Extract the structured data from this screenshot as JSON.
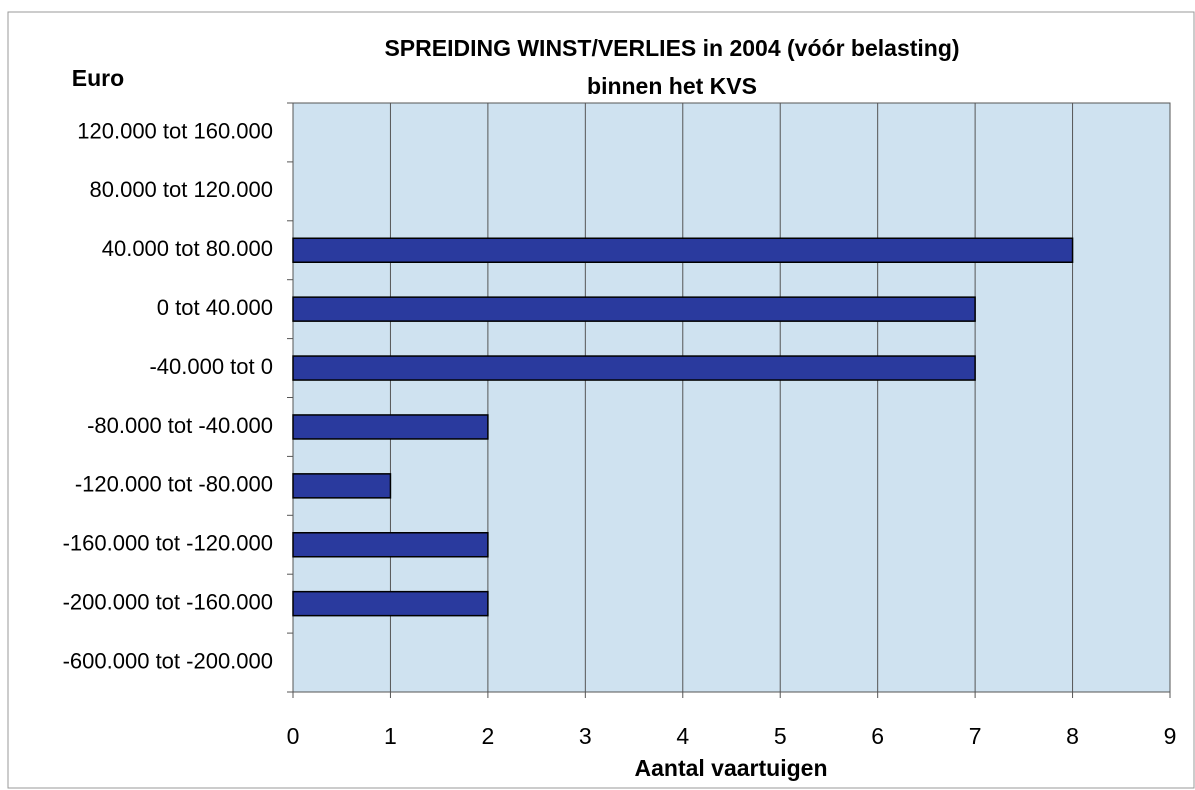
{
  "chart_data": {
    "type": "barh",
    "title": "SPREIDING WINST/VERLIES in 2004 (vóór belasting)",
    "subtitle": "binnen het KVS",
    "y_label": "Euro",
    "x_label": "Aantal vaartuigen",
    "categories": [
      "120.000 tot 160.000",
      "80.000 tot 120.000",
      "40.000 tot 80.000",
      "0 tot 40.000",
      "-40.000 tot 0",
      "-80.000 tot -40.000",
      "-120.000 tot -80.000",
      "-160.000 tot -120.000",
      "-200.000 tot -160.000",
      "-600.000 tot -200.000"
    ],
    "values": [
      0,
      0,
      8,
      7,
      7,
      2,
      1,
      2,
      2,
      0
    ],
    "color": "#2a3a9e",
    "xlim": [
      0,
      9
    ],
    "xticks": [
      0,
      1,
      2,
      3,
      4,
      5,
      6,
      7,
      8,
      9
    ],
    "grid": true
  }
}
